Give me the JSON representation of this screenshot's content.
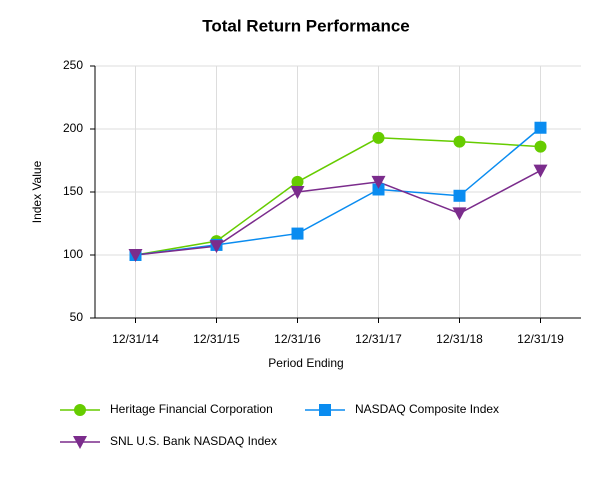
{
  "chart_data": {
    "type": "line",
    "title": "Total Return Performance",
    "x_label": "Period Ending",
    "y_label": "Index Value",
    "categories": [
      "12/31/14",
      "12/31/15",
      "12/31/16",
      "12/31/17",
      "12/31/18",
      "12/31/19"
    ],
    "series": [
      {
        "name": "Heritage Financial Corporation",
        "color": "#66cc00",
        "marker": "circle",
        "values": [
          100,
          111,
          158,
          193,
          190,
          186
        ]
      },
      {
        "name": "NASDAQ Composite Index",
        "color": "#0a8cf0",
        "marker": "square",
        "values": [
          100,
          108,
          117,
          152,
          147,
          201
        ]
      },
      {
        "name": "SNL U.S. Bank NASDAQ Index",
        "color": "#7b2c8c",
        "marker": "triangle-down",
        "values": [
          100,
          107,
          150,
          158,
          133,
          167
        ]
      }
    ],
    "ylim": [
      50,
      250
    ],
    "yticks": [
      50,
      100,
      150,
      200,
      250
    ],
    "grid": true
  }
}
